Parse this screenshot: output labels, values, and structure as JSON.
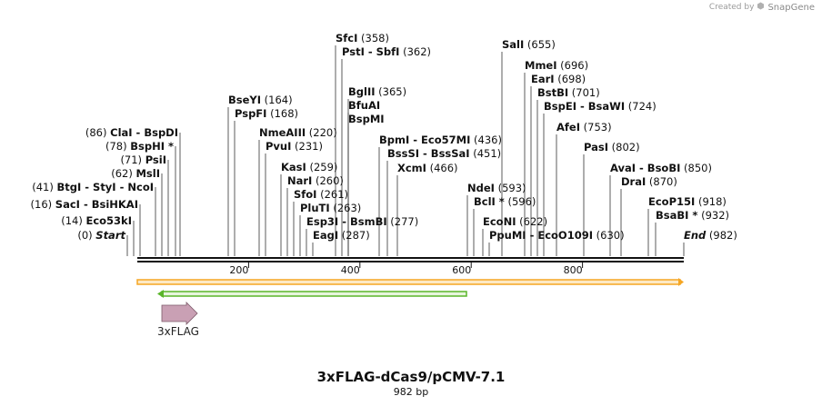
{
  "credit": {
    "prefix": "Created by",
    "brand": "SnapGene"
  },
  "title": "3xFLAG-dCas9/pCMV-7.1",
  "subtitle": "982 bp",
  "sequence_length": 982,
  "scale_ticks": [
    {
      "pos": 200,
      "label": "200"
    },
    {
      "pos": 400,
      "label": "400"
    },
    {
      "pos": 600,
      "label": "600"
    },
    {
      "pos": 800,
      "label": "800"
    }
  ],
  "features": [
    {
      "name": "3xFLAG",
      "start": 42,
      "end": 110,
      "kind": "arrow",
      "color": "#c9a0b4"
    }
  ],
  "sites": [
    {
      "side": "left",
      "bold": [
        {
          "t": "Start",
          "i": true
        }
      ],
      "pos": 0,
      "pos_label": "(0)"
    },
    {
      "side": "left",
      "bold": [
        {
          "t": "Eco53kI"
        }
      ],
      "pos": 14,
      "pos_label": "(14)"
    },
    {
      "side": "left",
      "bold": [
        {
          "t": "SacI"
        },
        {
          "t": "  -  BsiHKAI"
        }
      ],
      "pos": 16,
      "pos_label": "(16)"
    },
    {
      "side": "left",
      "bold": [
        {
          "t": "BtgI"
        },
        {
          "t": "  -  StyI"
        },
        {
          "t": "  -  NcoI"
        }
      ],
      "pos": 41,
      "pos_label": "(41)"
    },
    {
      "side": "left",
      "bold": [
        {
          "t": "MslI"
        }
      ],
      "pos": 62,
      "pos_label": "(62)"
    },
    {
      "side": "left",
      "bold": [
        {
          "t": "PsiI"
        }
      ],
      "pos": 71,
      "pos_label": "(71)"
    },
    {
      "side": "left",
      "bold": [
        {
          "t": "BspHI *"
        }
      ],
      "pos": 78,
      "pos_label": "(78)"
    },
    {
      "side": "left",
      "bold": [
        {
          "t": "ClaI"
        },
        {
          "t": "  -  BspDI"
        }
      ],
      "pos": 86,
      "pos_label": "(86)"
    },
    {
      "side": "right",
      "bold": [
        {
          "t": "BseYI"
        }
      ],
      "pos": 164,
      "pos_label": "(164)"
    },
    {
      "side": "right",
      "bold": [
        {
          "t": "PspFI"
        }
      ],
      "pos": 168,
      "pos_label": "(168)"
    },
    {
      "side": "right",
      "bold": [
        {
          "t": "NmeAIII"
        }
      ],
      "pos": 220,
      "pos_label": "(220)"
    },
    {
      "side": "right",
      "bold": [
        {
          "t": "PvuI"
        }
      ],
      "pos": 231,
      "pos_label": "(231)"
    },
    {
      "side": "right",
      "bold": [
        {
          "t": "KasI"
        }
      ],
      "pos": 259,
      "pos_label": "(259)"
    },
    {
      "side": "right",
      "bold": [
        {
          "t": "NarI"
        }
      ],
      "pos": 260,
      "pos_label": "(260)"
    },
    {
      "side": "right",
      "bold": [
        {
          "t": "SfoI"
        }
      ],
      "pos": 261,
      "pos_label": "(261)"
    },
    {
      "side": "right",
      "bold": [
        {
          "t": "PluTI"
        }
      ],
      "pos": 263,
      "pos_label": "(263)"
    },
    {
      "side": "right",
      "bold": [
        {
          "t": "Esp3I"
        },
        {
          "t": "  -  BsmBI"
        }
      ],
      "pos": 277,
      "pos_label": "(277)"
    },
    {
      "side": "right",
      "bold": [
        {
          "t": "EagI"
        }
      ],
      "pos": 287,
      "pos_label": "(287)"
    },
    {
      "side": "right",
      "bold": [
        {
          "t": "SfcI"
        }
      ],
      "pos": 358,
      "pos_label": "(358)"
    },
    {
      "side": "right",
      "bold": [
        {
          "t": "PstI"
        },
        {
          "t": "  -  SbfI"
        }
      ],
      "pos": 362,
      "pos_label": "(362)"
    },
    {
      "side": "right",
      "bold": [
        {
          "t": "BglII"
        }
      ],
      "pos": 365,
      "pos_label": "(365)"
    },
    {
      "side": "right",
      "bold": [
        {
          "t": "BfuAI"
        }
      ],
      "pos": 367,
      "pos_label": ""
    },
    {
      "side": "right",
      "bold": [
        {
          "t": "BspMI"
        }
      ],
      "pos": 367,
      "pos_label": ""
    },
    {
      "side": "right",
      "bold": [
        {
          "t": "BpmI"
        },
        {
          "t": "  -  Eco57MI"
        }
      ],
      "pos": 436,
      "pos_label": "(436)"
    },
    {
      "side": "right",
      "bold": [
        {
          "t": "BssSI"
        },
        {
          "t": "  -  BssSaI"
        }
      ],
      "pos": 451,
      "pos_label": "(451)"
    },
    {
      "side": "right",
      "bold": [
        {
          "t": "XcmI"
        }
      ],
      "pos": 466,
      "pos_label": "(466)"
    },
    {
      "side": "right",
      "bold": [
        {
          "t": "NdeI"
        }
      ],
      "pos": 593,
      "pos_label": "(593)"
    },
    {
      "side": "right",
      "bold": [
        {
          "t": "BclI *"
        }
      ],
      "pos": 596,
      "pos_label": "(596)"
    },
    {
      "side": "right",
      "bold": [
        {
          "t": "EcoNI"
        }
      ],
      "pos": 622,
      "pos_label": "(622)"
    },
    {
      "side": "right",
      "bold": [
        {
          "t": "PpuMI"
        },
        {
          "t": "  -  EcoO109I"
        }
      ],
      "pos": 630,
      "pos_label": "(630)"
    },
    {
      "side": "right",
      "bold": [
        {
          "t": "SalI"
        }
      ],
      "pos": 655,
      "pos_label": "(655)"
    },
    {
      "side": "right",
      "bold": [
        {
          "t": "MmeI"
        }
      ],
      "pos": 696,
      "pos_label": "(696)"
    },
    {
      "side": "right",
      "bold": [
        {
          "t": "EarI"
        }
      ],
      "pos": 698,
      "pos_label": "(698)"
    },
    {
      "side": "right",
      "bold": [
        {
          "t": "BstBI"
        }
      ],
      "pos": 701,
      "pos_label": "(701)"
    },
    {
      "side": "right",
      "bold": [
        {
          "t": "BspEI"
        },
        {
          "t": "  -  BsaWI"
        }
      ],
      "pos": 724,
      "pos_label": "(724)"
    },
    {
      "side": "right",
      "bold": [
        {
          "t": "AfeI"
        }
      ],
      "pos": 753,
      "pos_label": "(753)"
    },
    {
      "side": "right",
      "bold": [
        {
          "t": "PasI"
        }
      ],
      "pos": 802,
      "pos_label": "(802)"
    },
    {
      "side": "right",
      "bold": [
        {
          "t": "AvaI"
        },
        {
          "t": "  -  BsoBI"
        }
      ],
      "pos": 850,
      "pos_label": "(850)"
    },
    {
      "side": "right",
      "bold": [
        {
          "t": "DraI"
        }
      ],
      "pos": 870,
      "pos_label": "(870)"
    },
    {
      "side": "right",
      "bold": [
        {
          "t": "EcoP15I"
        }
      ],
      "pos": 918,
      "pos_label": "(918)"
    },
    {
      "side": "right",
      "bold": [
        {
          "t": "BsaBI *"
        }
      ],
      "pos": 932,
      "pos_label": "(932)"
    },
    {
      "side": "right",
      "bold": [
        {
          "t": "End",
          "i": true
        }
      ],
      "pos": 982,
      "pos_label": "(982)"
    }
  ],
  "colors": {
    "backbone": "#111111",
    "orange_bar": "#f5a623",
    "orange_bar_fill": "#fde9c4",
    "green_bar": "#5ab52a",
    "green_bar_fill": "#e7f5dd",
    "feature_arrow": "#c9a0b4",
    "leader": "#333333"
  }
}
